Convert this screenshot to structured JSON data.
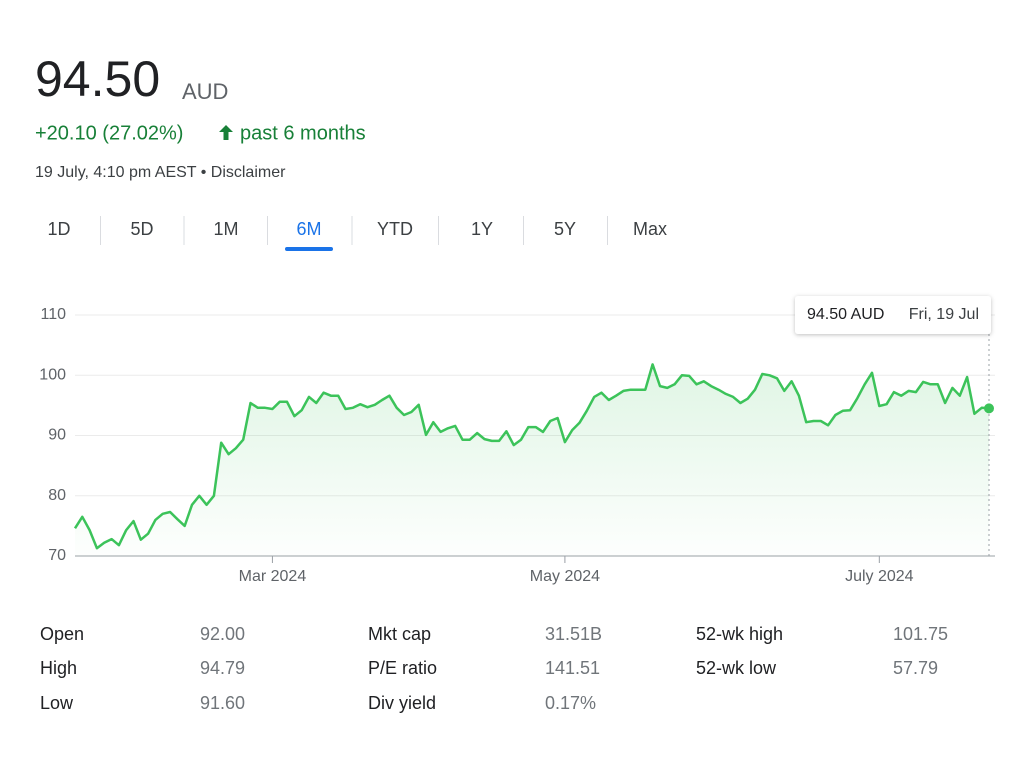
{
  "header": {
    "price": "94.50",
    "currency": "AUD",
    "change": "+20.10 (27.02%)",
    "period": "past 6 months",
    "timestamp": "19 July, 4:10 pm AEST • Disclaimer"
  },
  "tabs": [
    "1D",
    "5D",
    "1M",
    "6M",
    "YTD",
    "1Y",
    "5Y",
    "Max"
  ],
  "active_tab": 3,
  "chart_data": {
    "type": "line",
    "color": "#3cc35a",
    "grid": true,
    "ylim": [
      70,
      110
    ],
    "yticks": [
      70,
      80,
      90,
      100,
      110
    ],
    "tooltip": {
      "value": "94.50 AUD",
      "date": "Fri, 19 Jul"
    },
    "categories": [
      null,
      null,
      null,
      null,
      null,
      null,
      null,
      null,
      null,
      null,
      null,
      null,
      null,
      null,
      null,
      null,
      null,
      null,
      null,
      null,
      null,
      null,
      null,
      null,
      null,
      null,
      null,
      "Mar 2024",
      null,
      null,
      null,
      null,
      null,
      null,
      null,
      null,
      null,
      null,
      null,
      null,
      null,
      null,
      null,
      null,
      null,
      null,
      null,
      null,
      null,
      null,
      null,
      null,
      null,
      null,
      null,
      null,
      null,
      null,
      null,
      null,
      null,
      null,
      null,
      null,
      null,
      null,
      null,
      "May 2024",
      null,
      null,
      null,
      null,
      null,
      null,
      null,
      null,
      null,
      null,
      null,
      null,
      null,
      null,
      null,
      null,
      null,
      null,
      null,
      null,
      null,
      null,
      null,
      null,
      null,
      null,
      null,
      null,
      null,
      null,
      null,
      null,
      null,
      null,
      null,
      null,
      null,
      null,
      null,
      null,
      null,
      null,
      "July 2024",
      null,
      null,
      null,
      null,
      null,
      null,
      null,
      null,
      null,
      null,
      null,
      null,
      null,
      null,
      null
    ],
    "values": [
      74.6,
      76.5,
      74.3,
      71.3,
      72.2,
      72.8,
      71.8,
      74.3,
      75.8,
      72.7,
      73.7,
      76.0,
      77.0,
      77.3,
      76.1,
      75.0,
      78.5,
      80.0,
      78.5,
      80.0,
      88.8,
      86.9,
      87.9,
      89.3,
      95.4,
      94.6,
      94.6,
      94.4,
      95.6,
      95.6,
      93.2,
      94.2,
      96.4,
      95.4,
      97.1,
      96.6,
      96.6,
      94.4,
      94.6,
      95.2,
      94.7,
      95.1,
      95.9,
      96.6,
      94.6,
      93.4,
      93.9,
      95.1,
      90.1,
      92.2,
      90.6,
      91.2,
      91.6,
      89.3,
      89.3,
      90.4,
      89.4,
      89.1,
      89.1,
      90.7,
      88.4,
      89.3,
      91.4,
      91.4,
      90.6,
      92.4,
      92.9,
      88.9,
      90.9,
      92.1,
      94.1,
      96.4,
      97.1,
      95.9,
      96.6,
      97.4,
      97.6,
      97.6,
      97.6,
      101.8,
      98.2,
      97.9,
      98.5,
      100.0,
      99.9,
      98.5,
      99.0,
      98.2,
      97.6,
      96.9,
      96.4,
      95.4,
      96.1,
      97.6,
      100.2,
      100.0,
      99.5,
      97.4,
      99.0,
      96.6,
      92.2,
      92.4,
      92.4,
      91.7,
      93.4,
      94.1,
      94.2,
      96.2,
      98.5,
      100.4,
      94.9,
      95.2,
      97.2,
      96.6,
      97.4,
      97.2,
      98.9,
      98.5,
      98.5,
      95.4,
      97.9,
      96.6,
      99.7,
      93.6,
      94.6,
      94.5
    ]
  },
  "stats": [
    [
      {
        "label": "Open",
        "value": "92.00"
      },
      {
        "label": "High",
        "value": "94.79"
      },
      {
        "label": "Low",
        "value": "91.60"
      }
    ],
    [
      {
        "label": "Mkt cap",
        "value": "31.51B"
      },
      {
        "label": "P/E ratio",
        "value": "141.51"
      },
      {
        "label": "Div yield",
        "value": "0.17%"
      }
    ],
    [
      {
        "label": "52-wk high",
        "value": "101.75"
      },
      {
        "label": "52-wk low",
        "value": "57.79"
      }
    ]
  ]
}
